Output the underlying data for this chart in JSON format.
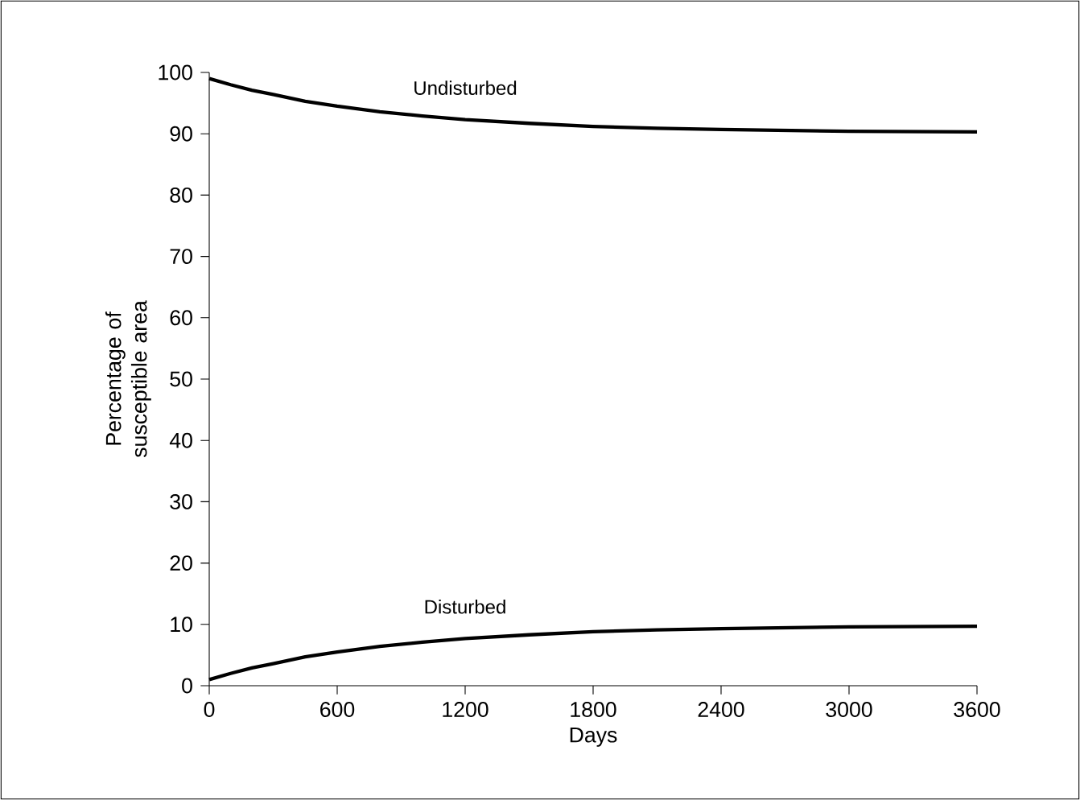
{
  "chart_data": {
    "type": "line",
    "xlabel": "Days",
    "ylabel": "Percentage of susceptible area",
    "x": [
      0,
      100,
      200,
      300,
      450,
      600,
      800,
      1000,
      1200,
      1500,
      1800,
      2100,
      2400,
      3000,
      3600
    ],
    "series": [
      {
        "name": "Undisturbed",
        "color": "#000000",
        "values": [
          99.0,
          98.0,
          97.1,
          96.4,
          95.3,
          94.5,
          93.6,
          92.9,
          92.3,
          91.7,
          91.2,
          90.9,
          90.7,
          90.4,
          90.3
        ]
      },
      {
        "name": "Disturbed",
        "color": "#000000",
        "values": [
          1.0,
          2.0,
          2.9,
          3.6,
          4.7,
          5.5,
          6.4,
          7.1,
          7.7,
          8.3,
          8.8,
          9.1,
          9.3,
          9.6,
          9.7
        ]
      }
    ],
    "xlim": [
      0,
      3600
    ],
    "ylim": [
      0,
      100
    ],
    "xticks": [
      0,
      600,
      1200,
      1800,
      2400,
      3000,
      3600
    ],
    "yticks": [
      0,
      10,
      20,
      30,
      40,
      50,
      60,
      70,
      80,
      90,
      100
    ],
    "grid": false,
    "legend": false,
    "marker": "none",
    "line_style": "solid"
  }
}
